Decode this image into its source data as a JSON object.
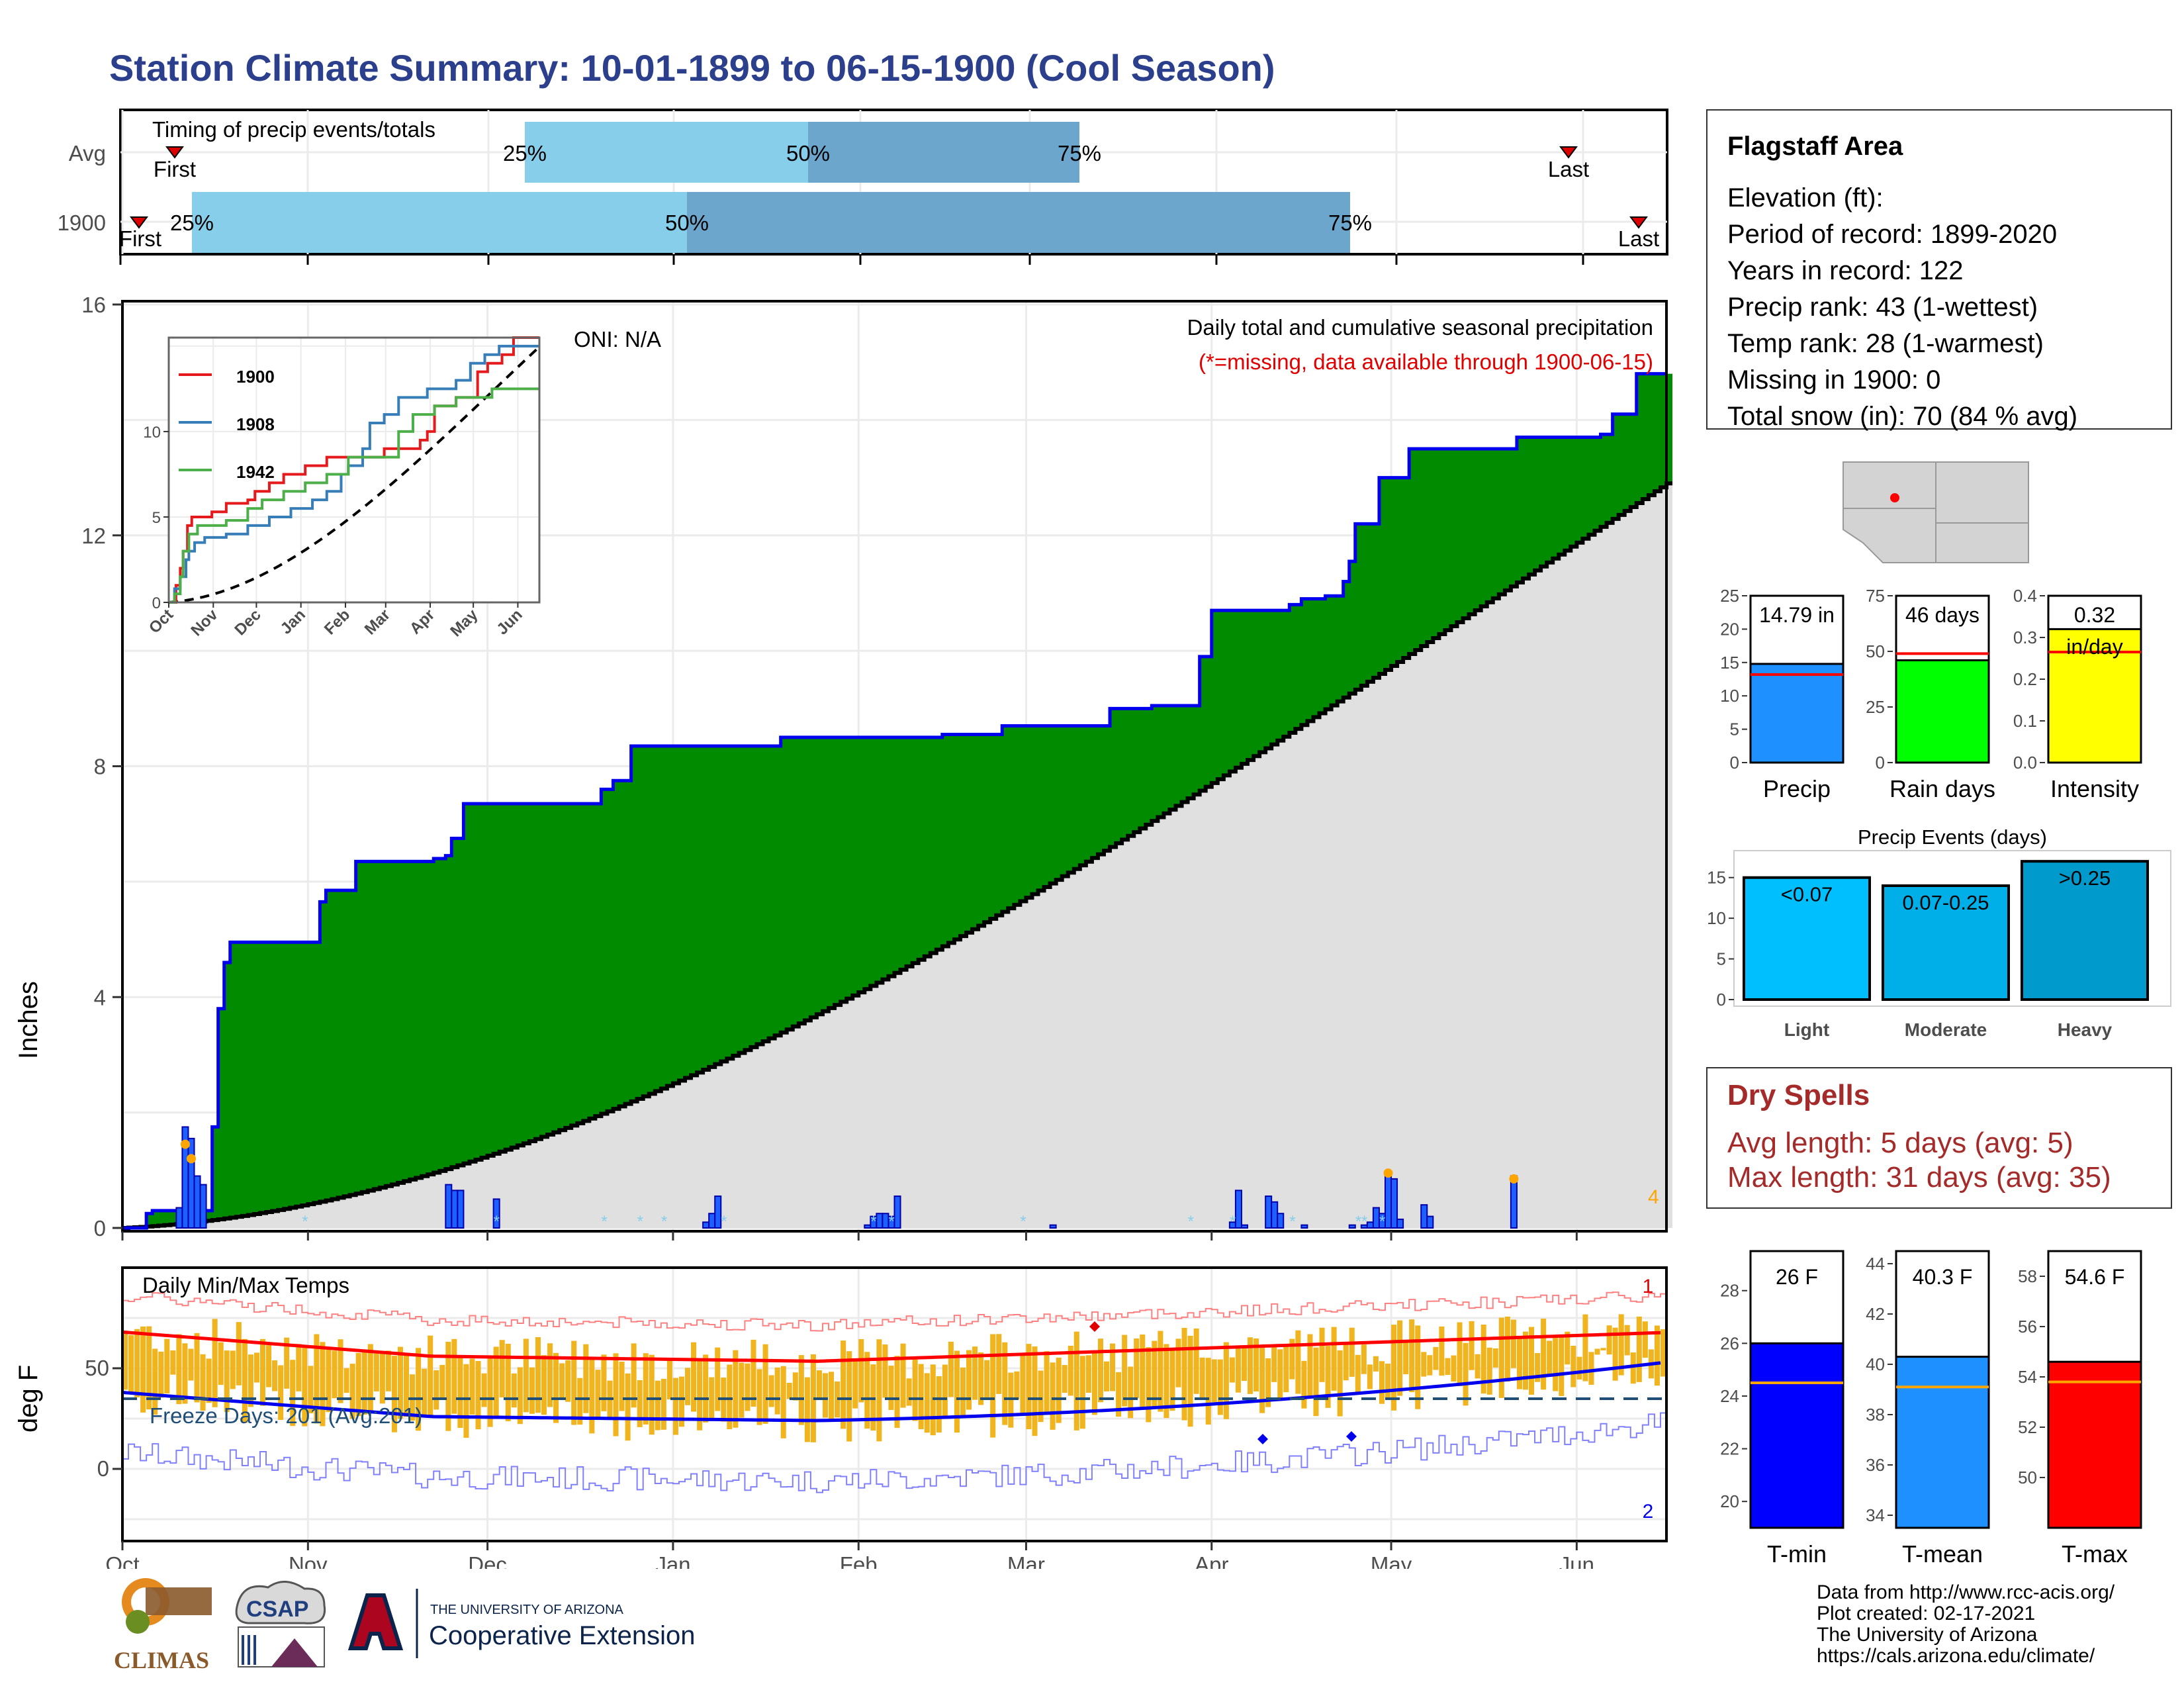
{
  "title": "Station Climate Summary: 10-01-1899 to 06-15-1900 (Cool Season)",
  "timing": {
    "label": "Timing of precip events/totals",
    "rows": [
      {
        "name": "Avg",
        "first_label": "First",
        "last_label": "Last",
        "p25_label": "25%",
        "p50_label": "50%",
        "p75_label": "75%"
      },
      {
        "name": "1900",
        "first_label": "First",
        "last_label": "Last",
        "p25_label": "25%",
        "p50_label": "50%",
        "p75_label": "75%"
      }
    ]
  },
  "main": {
    "ylabel": "Inches",
    "caption_line1": "Daily total and cumulative seasonal precipitation",
    "caption_line2": "(*=missing, data available through 1900-06-15)",
    "oni": "ONI: N/A",
    "corner_count": "4",
    "yticks": [
      "0",
      "4",
      "8",
      "12",
      "16"
    ]
  },
  "inset": {
    "legend": [
      {
        "name": "1900",
        "color": "#e41a1c"
      },
      {
        "name": "1908",
        "color": "#377eb8"
      },
      {
        "name": "1942",
        "color": "#4daf4a"
      }
    ],
    "yticks": [
      "0",
      "5",
      "10"
    ],
    "xticks": [
      "Oct",
      "Nov",
      "Dec",
      "Jan",
      "Feb",
      "Mar",
      "Apr",
      "May",
      "Jun"
    ]
  },
  "temps": {
    "label": "Daily Min/Max Temps",
    "ylabel": "deg F",
    "freeze_label": "Freeze Days: 201 (Avg:201)",
    "count_top": "1",
    "count_bottom": "2",
    "yticks": [
      "0",
      "50"
    ]
  },
  "xaxis_months": [
    "Oct",
    "Nov",
    "Dec",
    "Jan",
    "Feb",
    "Mar",
    "Apr",
    "May",
    "Jun"
  ],
  "station": {
    "name": "Flagstaff Area",
    "lines": [
      "Elevation (ft):",
      "Period of record: 1899-2020",
      "Years in record: 122",
      "Precip rank: 43 (1-wettest)",
      "Temp rank: 28 (1-warmest)",
      "Missing in 1900: 0",
      "Total snow (in): 70 (84 % avg)"
    ]
  },
  "summary_bars": [
    {
      "label": "Precip",
      "value_text": "14.79 in",
      "value": 14.79,
      "avg": 13.2,
      "ymax": 25,
      "yticks": [
        "0",
        "5",
        "10",
        "15",
        "20",
        "25"
      ],
      "color": "#1e90ff"
    },
    {
      "label": "Rain days",
      "value_text": "46 days",
      "value": 46,
      "avg": 49,
      "ymax": 75,
      "yticks": [
        "0",
        "25",
        "50",
        "75"
      ],
      "color": "#00ff00"
    },
    {
      "label": "Intensity",
      "value_text": "0.32",
      "value_text2": "in/day",
      "value": 0.32,
      "avg": 0.265,
      "ymax": 0.4,
      "yticks": [
        "0.0",
        "0.1",
        "0.2",
        "0.3",
        "0.4"
      ],
      "color": "#ffff00"
    }
  ],
  "precip_events": {
    "title": "Precip Events (days)",
    "yticks": [
      "0",
      "5",
      "10",
      "15"
    ],
    "bars": [
      {
        "label": "Light",
        "value_label": "<0.07",
        "value": 15,
        "color": "#00bfff"
      },
      {
        "label": "Moderate",
        "value_label": "0.07-0.25",
        "value": 14,
        "color": "#00aee8"
      },
      {
        "label": "Heavy",
        "value_label": ">0.25",
        "value": 17,
        "color": "#009acd"
      }
    ]
  },
  "dry_spells": {
    "title": "Dry Spells",
    "line1": "Avg length: 5 days (avg: 5)",
    "line2": "Max length: 31 days (avg: 35)"
  },
  "temp_bars": [
    {
      "label": "T-min",
      "value_text": "26 F",
      "value": 26,
      "avg": 24.5,
      "ymin": 19,
      "ymax": 29.5,
      "yticks": [
        "20",
        "22",
        "24",
        "26",
        "28"
      ],
      "color": "#0000ff"
    },
    {
      "label": "T-mean",
      "value_text": "40.3 F",
      "value": 40.3,
      "avg": 39.1,
      "ymin": 33.5,
      "ymax": 44.5,
      "yticks": [
        "34",
        "36",
        "38",
        "40",
        "42",
        "44"
      ],
      "color": "#1e90ff"
    },
    {
      "label": "T-max",
      "value_text": "54.6 F",
      "value": 54.6,
      "avg": 53.8,
      "ymin": 48,
      "ymax": 59,
      "yticks": [
        "50",
        "52",
        "54",
        "56",
        "58"
      ],
      "color": "#ff0000"
    }
  ],
  "footer": {
    "lines": [
      "Data from http://www.rcc-acis.org/",
      "Plot created: 02-17-2021",
      "The University of Arizona",
      "https://cals.arizona.edu/climate/"
    ],
    "climas": "CLIMAS",
    "csap": "CSAP",
    "ua_small": "THE UNIVERSITY OF ARIZONA",
    "ua_big": "Cooperative Extension"
  },
  "chart_data": {
    "type": "area",
    "xlabel": "",
    "ylabel": "Inches",
    "ylim": [
      0,
      16
    ],
    "x_range": [
      "1899-10-01",
      "1900-06-15"
    ],
    "series": [
      {
        "name": "1900",
        "values_by_day": [
          [
            0,
            0.0
          ],
          [
            7,
            0.25
          ],
          [
            10,
            0.3
          ],
          [
            30,
            0.3
          ],
          [
            31,
            0.85
          ],
          [
            32,
            1.75
          ],
          [
            33,
            2.7
          ],
          [
            34,
            2.8
          ],
          [
            35,
            3.8
          ],
          [
            36,
            4.25
          ],
          [
            37,
            4.6
          ],
          [
            38,
            4.95
          ],
          [
            48,
            4.95
          ],
          [
            70,
            4.95
          ],
          [
            72,
            5.65
          ],
          [
            74,
            5.85
          ],
          [
            80,
            5.85
          ],
          [
            85,
            6.35
          ],
          [
            110,
            6.35
          ],
          [
            112,
            6.4
          ],
          [
            118,
            6.45
          ],
          [
            120,
            6.75
          ],
          [
            124,
            7.35
          ],
          [
            150,
            7.35
          ],
          [
            175,
            7.6
          ],
          [
            178,
            7.75
          ],
          [
            184,
            7.95
          ],
          [
            186,
            8.35
          ],
          [
            230,
            8.35
          ],
          [
            240,
            8.5
          ],
          [
            300,
            8.55
          ],
          [
            320,
            8.7
          ],
          [
            345,
            8.7
          ],
          [
            360,
            9.0
          ],
          [
            376,
            9.05
          ],
          [
            388,
            9.05
          ],
          [
            394,
            9.9
          ],
          [
            398,
            10.7
          ],
          [
            420,
            10.7
          ],
          [
            425,
            10.8
          ],
          [
            430,
            10.9
          ],
          [
            440,
            10.95
          ],
          [
            445,
            11.2
          ],
          [
            448,
            11.55
          ],
          [
            451,
            12.2
          ],
          [
            459,
            13.0
          ],
          [
            470,
            13.5
          ],
          [
            490,
            13.5
          ],
          [
            510,
            13.7
          ],
          [
            532,
            13.7
          ],
          [
            540,
            13.75
          ],
          [
            545,
            14.1
          ],
          [
            552,
            14.8
          ],
          [
            565,
            14.8
          ]
        ]
      },
      {
        "name": "Avg",
        "values": "cumulative average rising from 0 to ~12.9 by mid-June"
      }
    ],
    "daily_precip_days": [
      "Oct 10",
      "Oct 11",
      "Oct 12",
      "Oct 13",
      "Nov 24",
      "Dec 2",
      "Dec 25",
      "Jan 5",
      "Mar 4",
      "Apr 1",
      "Apr 6",
      "Apr 27",
      "Apr 28",
      "May 4",
      "May 21"
    ]
  }
}
